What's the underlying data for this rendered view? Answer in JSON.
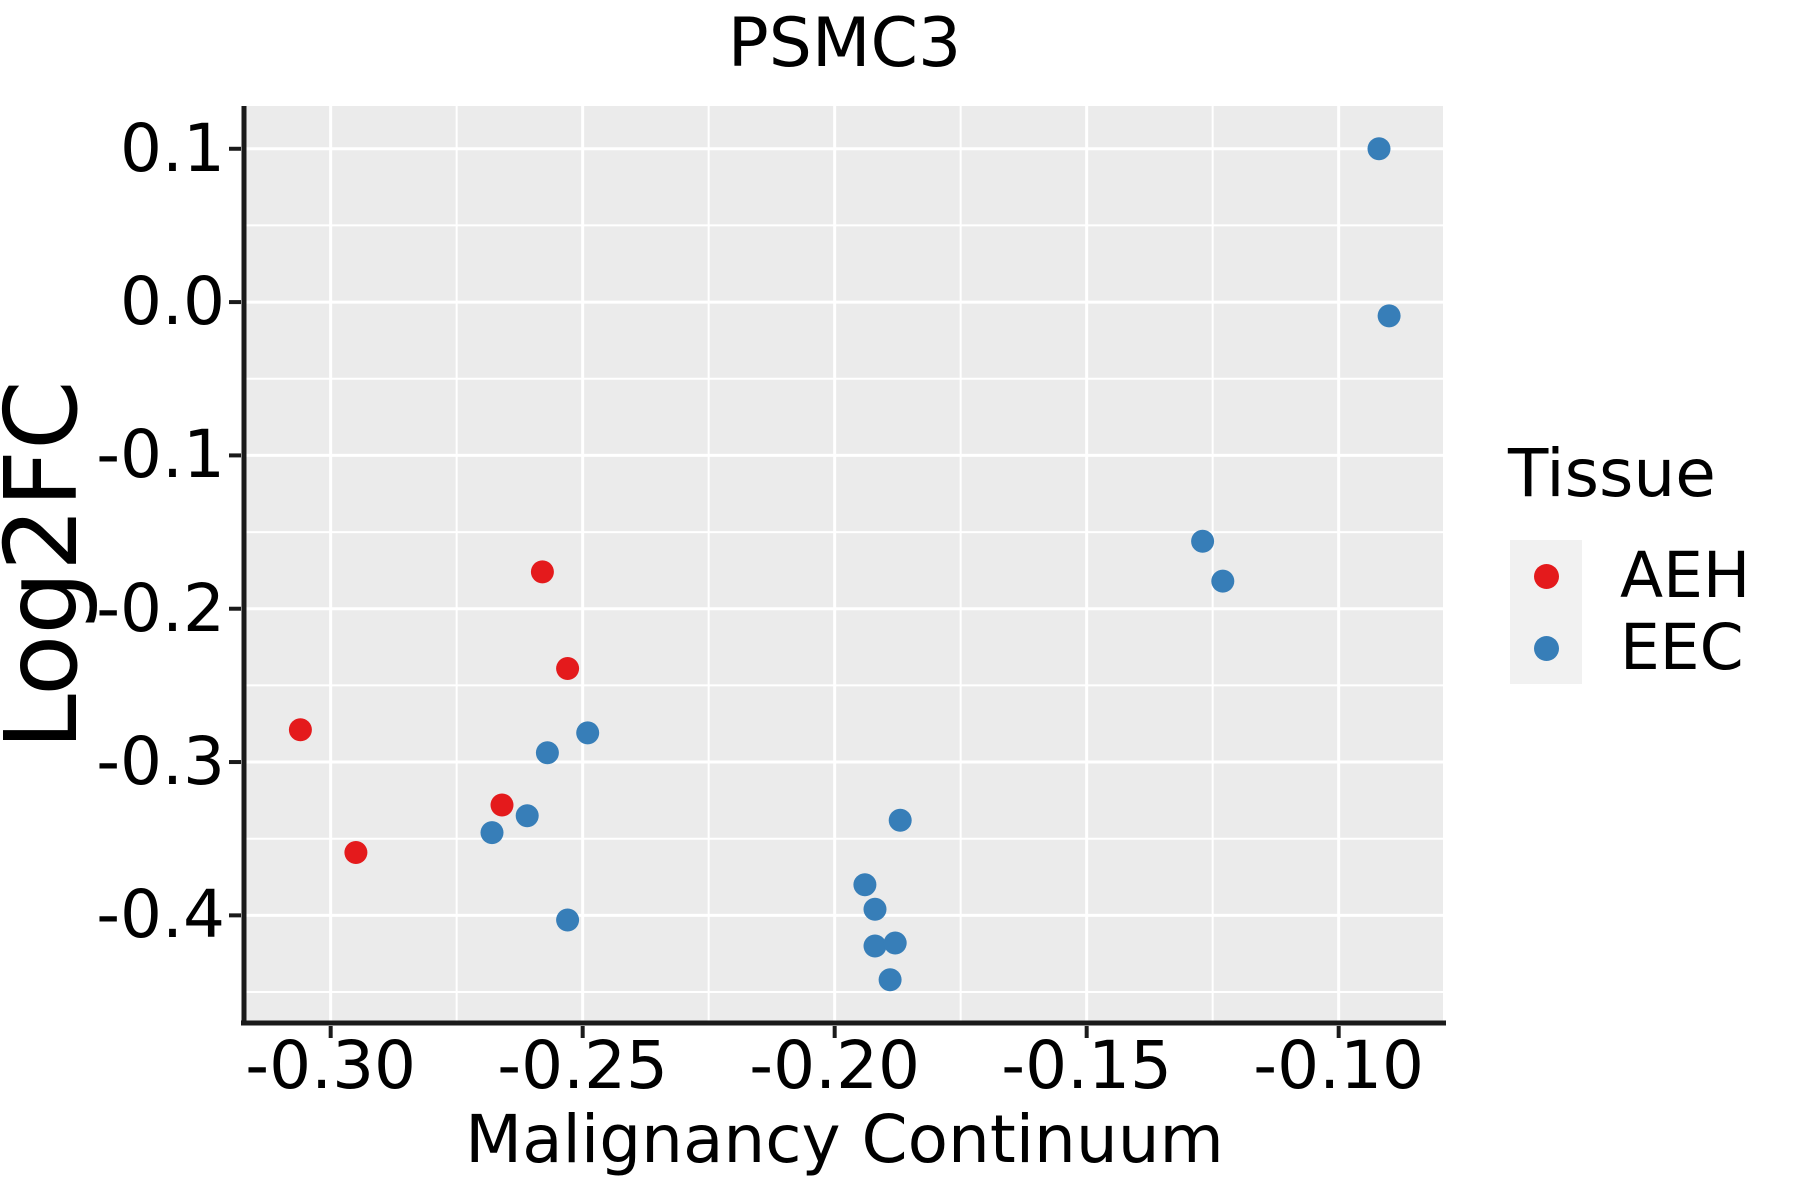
{
  "title": "PSMC3",
  "axes": {
    "x_label": "Malignancy Continuum",
    "y_label": "Log2FC",
    "x_ticks": [
      "-0.30",
      "-0.25",
      "-0.20",
      "-0.15",
      "-0.10"
    ],
    "x_tick_values": [
      -0.3,
      -0.25,
      -0.2,
      -0.15,
      -0.1
    ],
    "y_ticks": [
      "0.1",
      "0.0",
      "-0.1",
      "-0.2",
      "-0.3",
      "-0.4"
    ],
    "y_tick_values": [
      0.1,
      0.0,
      -0.1,
      -0.2,
      -0.3,
      -0.4
    ]
  },
  "legend": {
    "title": "Tissue",
    "items": [
      {
        "label": "AEH",
        "color": "#E41A1C"
      },
      {
        "label": "EEC",
        "color": "#377EB8"
      }
    ]
  },
  "colors": {
    "panel_bg": "#EBEBEB",
    "grid": "#FFFFFF",
    "axis": "#1A1A1A",
    "text": "#000000",
    "legend_key_bg": "#F1F1F1",
    "aeh": "#E41A1C",
    "eec": "#377EB8"
  },
  "chart_data": {
    "type": "scatter",
    "title": "PSMC3",
    "xlabel": "Malignancy Continuum",
    "ylabel": "Log2FC",
    "xlim": [
      -0.3168,
      -0.0793
    ],
    "ylim": [
      -0.4689,
      0.1279
    ],
    "x_major_gridlines": [
      -0.3,
      -0.25,
      -0.2,
      -0.15,
      -0.1
    ],
    "x_minor_gridlines": [
      -0.275,
      -0.225,
      -0.175,
      -0.125
    ],
    "y_major_gridlines": [
      0.1,
      0.0,
      -0.1,
      -0.2,
      -0.3,
      -0.4
    ],
    "y_minor_gridlines": [
      0.05,
      -0.05,
      -0.15,
      -0.25,
      -0.35,
      -0.45
    ],
    "grid": "major and minor white gridlines on gray panel",
    "legend_position": "right",
    "series": [
      {
        "name": "AEH",
        "color": "#E41A1C",
        "points": [
          [
            -0.306,
            -0.279
          ],
          [
            -0.295,
            -0.359
          ],
          [
            -0.266,
            -0.328
          ],
          [
            -0.258,
            -0.176
          ],
          [
            -0.253,
            -0.239
          ]
        ]
      },
      {
        "name": "EEC",
        "color": "#377EB8",
        "points": [
          [
            -0.268,
            -0.346
          ],
          [
            -0.261,
            -0.335
          ],
          [
            -0.257,
            -0.294
          ],
          [
            -0.249,
            -0.281
          ],
          [
            -0.253,
            -0.403
          ],
          [
            -0.194,
            -0.38
          ],
          [
            -0.192,
            -0.396
          ],
          [
            -0.192,
            -0.42
          ],
          [
            -0.188,
            -0.418
          ],
          [
            -0.189,
            -0.442
          ],
          [
            -0.187,
            -0.338
          ],
          [
            -0.127,
            -0.156
          ],
          [
            -0.123,
            -0.182
          ],
          [
            -0.092,
            0.1
          ],
          [
            -0.09,
            -0.009
          ]
        ]
      }
    ]
  }
}
